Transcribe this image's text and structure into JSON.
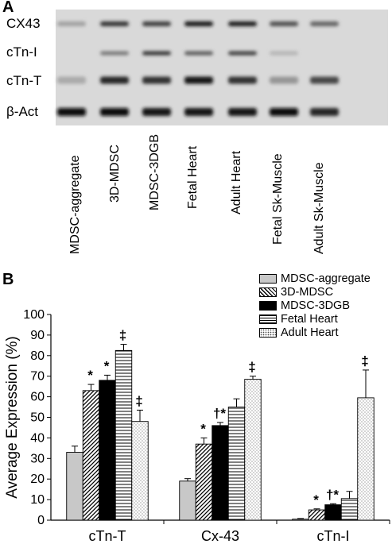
{
  "panel_a": {
    "letter": "A",
    "rows": [
      "CX43",
      "cTn-I",
      "cTn-T",
      "β-Act"
    ],
    "lanes": [
      "MDSC-aggregate",
      "3D-MDSC",
      "MDSC-3DGB",
      "Fetal Heart",
      "Adult Heart",
      "Fetal Sk-Muscle",
      "Adult Sk-Muscle"
    ]
  },
  "panel_b": {
    "letter": "B"
  },
  "chart_data": {
    "type": "bar",
    "categories": [
      "cTn-T",
      "Cx-43",
      "cTn-I"
    ],
    "ylabel": "Average Expression (%)",
    "ylim": [
      0,
      100
    ],
    "yticks": [
      0,
      10,
      20,
      30,
      40,
      50,
      60,
      70,
      80,
      90,
      100
    ],
    "series": [
      {
        "name": "MDSC-aggregate",
        "values": [
          33,
          19,
          0.5
        ],
        "errors": [
          3,
          1.2,
          0.3
        ],
        "marks": [
          "",
          "",
          ""
        ],
        "pattern": "gray"
      },
      {
        "name": "3D-MDSC",
        "values": [
          63,
          37,
          5
        ],
        "errors": [
          3,
          3,
          0.5
        ],
        "marks": [
          "*",
          "*",
          "*"
        ],
        "pattern": "diagonal"
      },
      {
        "name": "MDSC-3DGB",
        "values": [
          68,
          46,
          7.5
        ],
        "errors": [
          2.5,
          1.5,
          0.5
        ],
        "marks": [
          "*",
          "†*",
          "†*"
        ],
        "pattern": "black"
      },
      {
        "name": "Fetal Heart",
        "values": [
          82.5,
          55,
          10.5
        ],
        "errors": [
          3,
          4,
          3.5
        ],
        "marks": [
          "‡",
          "",
          ""
        ],
        "pattern": "horizontal"
      },
      {
        "name": "Adult Heart",
        "values": [
          48,
          68.5,
          59.5
        ],
        "errors": [
          5.5,
          1.5,
          13.5
        ],
        "marks": [
          "‡",
          "‡",
          "‡"
        ],
        "pattern": "dots"
      }
    ],
    "grid": false,
    "legend_position": "top-right"
  }
}
